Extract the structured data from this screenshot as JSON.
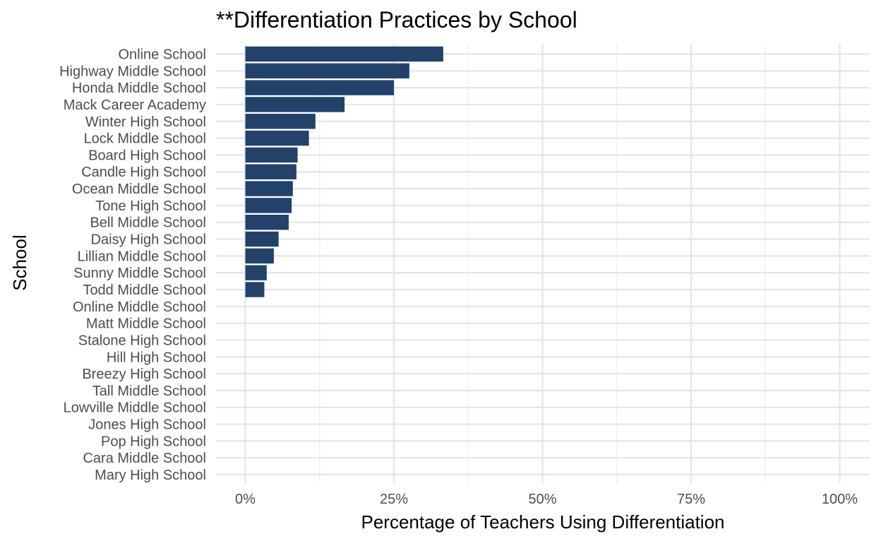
{
  "chart_data": {
    "type": "bar",
    "orientation": "horizontal",
    "title": "**Differentiation Practices by School",
    "xlabel": "Percentage of Teachers Using Differentiation",
    "ylabel": "School",
    "xlim": [
      0,
      1
    ],
    "x_ticks": [
      0,
      0.25,
      0.5,
      0.75,
      1.0
    ],
    "x_tick_labels": [
      "0%",
      "25%",
      "50%",
      "75%",
      "100%"
    ],
    "grid": true,
    "legend": "none",
    "bar_color": "#22426a",
    "categories": [
      "Online School",
      "Highway Middle School",
      "Honda Middle School",
      "Mack Career Academy",
      "Winter High School",
      "Lock Middle School",
      "Board High School",
      "Candle High School",
      "Ocean Middle School",
      "Tone High School",
      "Bell Middle School",
      "Daisy High School",
      "Lillian Middle School",
      "Sunny Middle School",
      "Todd Middle School",
      "Online Middle School",
      "Matt Middle School",
      "Stalone High School",
      "Hill High School",
      "Breezy High School",
      "Tall Middle School",
      "Lowville Middle School",
      "Jones High School",
      "Pop High School",
      "Cara Middle School",
      "Mary High School"
    ],
    "values": [
      0.333,
      0.276,
      0.25,
      0.167,
      0.118,
      0.107,
      0.088,
      0.086,
      0.08,
      0.078,
      0.073,
      0.056,
      0.048,
      0.036,
      0.032,
      0,
      0,
      0,
      0,
      0,
      0,
      0,
      0,
      0,
      0,
      0
    ]
  }
}
